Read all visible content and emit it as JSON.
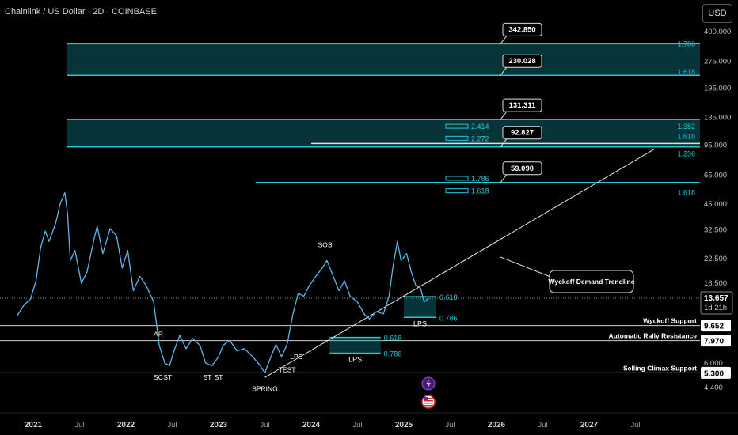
{
  "title": "Chainlink / US Dollar · 2D · COINBASE",
  "currency_button": "USD",
  "colors": {
    "background": "#000000",
    "cyan": "#22c7d8",
    "zone_fill": "rgba(20,150,160,0.35)",
    "white_line": "#d0d0d0",
    "text": "#d1d4dc"
  },
  "chart_data": {
    "type": "line",
    "symbol": "LINK/USD",
    "timeframe": "2D",
    "scale": "log",
    "x_ticks": [
      "2021",
      "Jul",
      "2022",
      "Jul",
      "2023",
      "Jul",
      "2024",
      "Jul",
      "2025",
      "Jul",
      "2026",
      "Jul",
      "2027",
      "Jul"
    ],
    "y_ticks": [
      "400.000",
      "275.000",
      "195.000",
      "135.000",
      "95.000",
      "65.000",
      "45.000",
      "32.500",
      "22.500",
      "16.500",
      "6.000",
      "4.400"
    ],
    "ylim": [
      4.0,
      480.0
    ],
    "price_path": [
      {
        "t": 2020.83,
        "v": 11.0
      },
      {
        "t": 2020.9,
        "v": 12.5
      },
      {
        "t": 2020.97,
        "v": 13.5
      },
      {
        "t": 2021.03,
        "v": 17.0
      },
      {
        "t": 2021.08,
        "v": 26.0
      },
      {
        "t": 2021.13,
        "v": 32.0
      },
      {
        "t": 2021.17,
        "v": 28.0
      },
      {
        "t": 2021.24,
        "v": 35.0
      },
      {
        "t": 2021.29,
        "v": 45.0
      },
      {
        "t": 2021.34,
        "v": 52.0
      },
      {
        "t": 2021.37,
        "v": 40.0
      },
      {
        "t": 2021.4,
        "v": 22.0
      },
      {
        "t": 2021.45,
        "v": 25.0
      },
      {
        "t": 2021.52,
        "v": 16.5
      },
      {
        "t": 2021.58,
        "v": 19.0
      },
      {
        "t": 2021.65,
        "v": 28.0
      },
      {
        "t": 2021.69,
        "v": 34.0
      },
      {
        "t": 2021.75,
        "v": 24.0
      },
      {
        "t": 2021.83,
        "v": 33.0
      },
      {
        "t": 2021.9,
        "v": 30.0
      },
      {
        "t": 2021.96,
        "v": 20.0
      },
      {
        "t": 2022.02,
        "v": 25.0
      },
      {
        "t": 2022.08,
        "v": 15.0
      },
      {
        "t": 2022.15,
        "v": 18.0
      },
      {
        "t": 2022.22,
        "v": 16.0
      },
      {
        "t": 2022.3,
        "v": 13.0
      },
      {
        "t": 2022.36,
        "v": 7.5
      },
      {
        "t": 2022.42,
        "v": 6.0
      },
      {
        "t": 2022.47,
        "v": 5.8
      },
      {
        "t": 2022.52,
        "v": 7.0
      },
      {
        "t": 2022.58,
        "v": 8.5
      },
      {
        "t": 2022.65,
        "v": 7.2
      },
      {
        "t": 2022.72,
        "v": 8.2
      },
      {
        "t": 2022.8,
        "v": 7.5
      },
      {
        "t": 2022.86,
        "v": 6.0
      },
      {
        "t": 2022.93,
        "v": 5.8
      },
      {
        "t": 2023.0,
        "v": 6.5
      },
      {
        "t": 2023.05,
        "v": 7.5
      },
      {
        "t": 2023.12,
        "v": 8.0
      },
      {
        "t": 2023.2,
        "v": 7.0
      },
      {
        "t": 2023.28,
        "v": 7.2
      },
      {
        "t": 2023.38,
        "v": 6.4
      },
      {
        "t": 2023.45,
        "v": 5.8
      },
      {
        "t": 2023.5,
        "v": 5.3
      },
      {
        "t": 2023.55,
        "v": 6.2
      },
      {
        "t": 2023.62,
        "v": 7.6
      },
      {
        "t": 2023.68,
        "v": 6.5
      },
      {
        "t": 2023.74,
        "v": 7.6
      },
      {
        "t": 2023.8,
        "v": 11.0
      },
      {
        "t": 2023.86,
        "v": 14.5
      },
      {
        "t": 2023.92,
        "v": 14.0
      },
      {
        "t": 2023.98,
        "v": 16.0
      },
      {
        "t": 2024.05,
        "v": 18.0
      },
      {
        "t": 2024.12,
        "v": 20.0
      },
      {
        "t": 2024.17,
        "v": 22.0
      },
      {
        "t": 2024.22,
        "v": 19.0
      },
      {
        "t": 2024.3,
        "v": 15.0
      },
      {
        "t": 2024.36,
        "v": 17.0
      },
      {
        "t": 2024.42,
        "v": 14.0
      },
      {
        "t": 2024.5,
        "v": 13.0
      },
      {
        "t": 2024.58,
        "v": 11.0
      },
      {
        "t": 2024.63,
        "v": 10.5
      },
      {
        "t": 2024.7,
        "v": 11.5
      },
      {
        "t": 2024.78,
        "v": 11.2
      },
      {
        "t": 2024.84,
        "v": 14.0
      },
      {
        "t": 2024.88,
        "v": 20.0
      },
      {
        "t": 2024.93,
        "v": 28.0
      },
      {
        "t": 2024.97,
        "v": 22.0
      },
      {
        "t": 2025.03,
        "v": 24.0
      },
      {
        "t": 2025.08,
        "v": 19.0
      },
      {
        "t": 2025.13,
        "v": 16.0
      },
      {
        "t": 2025.18,
        "v": 15.5
      },
      {
        "t": 2025.22,
        "v": 13.0
      },
      {
        "t": 2025.27,
        "v": 13.657
      }
    ],
    "current_price": {
      "value": "13.657",
      "countdown": "1d 21h"
    },
    "zones": [
      {
        "low": 230.028,
        "high": 342.85,
        "label_high": "1.786",
        "label_low": "1.618"
      },
      {
        "low": 92.827,
        "high": 131.311,
        "label_high": "1.382",
        "label_low": "1.618"
      }
    ],
    "horizontal_levels": [
      {
        "value": 97.0,
        "label": "1.618",
        "from": 2024.0
      },
      {
        "value": 59.09,
        "label": "1.618",
        "from": 2023.4
      }
    ],
    "target_callouts": [
      {
        "value": "342.850"
      },
      {
        "value": "230.028"
      },
      {
        "value": "131.311"
      },
      {
        "value": "92.827"
      },
      {
        "value": "59.090"
      }
    ],
    "side_labels": [
      {
        "text": "1.786",
        "price": 342.85
      },
      {
        "text": "1.618",
        "price": 240.0
      },
      {
        "text": "1.382",
        "price": 120.0
      },
      {
        "text": "1.618",
        "price": 106.0
      },
      {
        "text": "1.236",
        "price": 85.0
      },
      {
        "text": "1.618",
        "price": 52.0
      }
    ],
    "fib_markers": [
      {
        "text": "2.414",
        "price": 120.0
      },
      {
        "text": "2.272",
        "price": 103.0
      },
      {
        "text": "1.786",
        "price": 62.0
      },
      {
        "text": "1.618",
        "price": 53.0
      }
    ],
    "small_zones": [
      {
        "low": 10.7,
        "high": 13.9,
        "label_high": "0.618",
        "label_low": "0.786",
        "from": 2025.0,
        "to": 2025.35,
        "caption": "LPS"
      },
      {
        "low": 6.8,
        "high": 8.3,
        "label_high": "0.618",
        "label_low": "0.786",
        "from": 2024.2,
        "to": 2024.75,
        "caption": "LPS"
      }
    ],
    "support_lines": [
      {
        "value": 9.652,
        "label": "Wyckoff Support"
      },
      {
        "value": 7.97,
        "label": "Automatic Rally Resistance"
      },
      {
        "value": 5.3,
        "label": "Selling Climax Support"
      }
    ],
    "trendline": {
      "label": "Wyckoff Demand Trendline",
      "start": {
        "t": 2023.5,
        "v": 5.0
      },
      "end": {
        "t": 2027.7,
        "v": 90.0
      }
    },
    "annotations": [
      {
        "text": "SOS",
        "t": 2024.15,
        "v": 26.0
      },
      {
        "text": "AR",
        "t": 2022.35,
        "v": 8.4
      },
      {
        "text": "SC",
        "t": 2022.35,
        "v": 4.85
      },
      {
        "text": "ST",
        "t": 2022.45,
        "v": 4.85
      },
      {
        "text": "ST",
        "t": 2022.88,
        "v": 4.85
      },
      {
        "text": "ST",
        "t": 2023.0,
        "v": 4.85
      },
      {
        "text": "SPRING",
        "t": 2023.5,
        "v": 4.2
      },
      {
        "text": "TEST",
        "t": 2023.74,
        "v": 5.35
      },
      {
        "text": "LPS",
        "t": 2023.84,
        "v": 6.3
      }
    ]
  }
}
